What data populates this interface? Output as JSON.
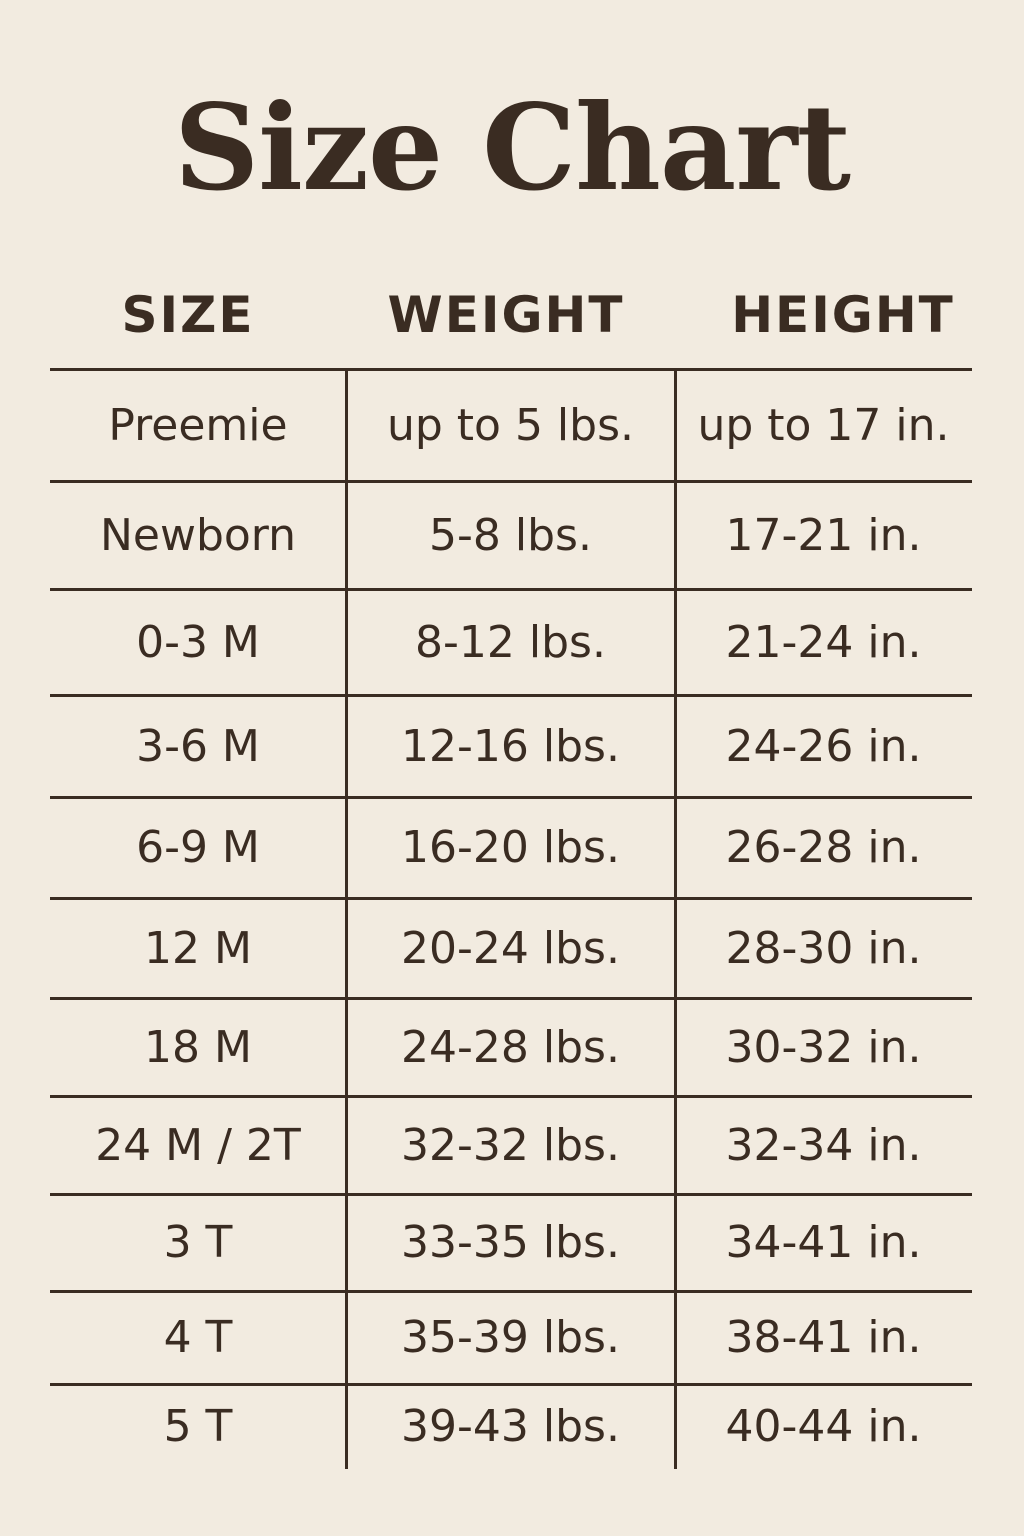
{
  "title": "Size Chart",
  "headers": [
    "SIZE",
    "WEIGHT",
    "HEIGHT"
  ],
  "rows": [
    [
      "Preemie",
      "up to 5 lbs.",
      "up to 17 in."
    ],
    [
      "Newborn",
      "5-8 lbs.",
      "17-21 in."
    ],
    [
      "0-3 M",
      "8-12 lbs.",
      "21-24 in."
    ],
    [
      "3-6 M",
      "12-16 lbs.",
      "24-26 in."
    ],
    [
      "6-9 M",
      "16-20 lbs.",
      "26-28 in."
    ],
    [
      "12 M",
      "20-24 lbs.",
      "28-30 in."
    ],
    [
      "18 M",
      "24-28 lbs.",
      "30-32 in."
    ],
    [
      "24 M / 2T",
      "32-32 lbs.",
      "32-34 in."
    ],
    [
      "3 T",
      "33-35 lbs.",
      "34-41 in."
    ],
    [
      "4 T",
      "35-39 lbs.",
      "38-41 in."
    ],
    [
      "5 T",
      "39-43 lbs.",
      "40-44 in."
    ]
  ],
  "colors": {
    "background": "#f2ebe0",
    "text": "#3a2c22"
  }
}
